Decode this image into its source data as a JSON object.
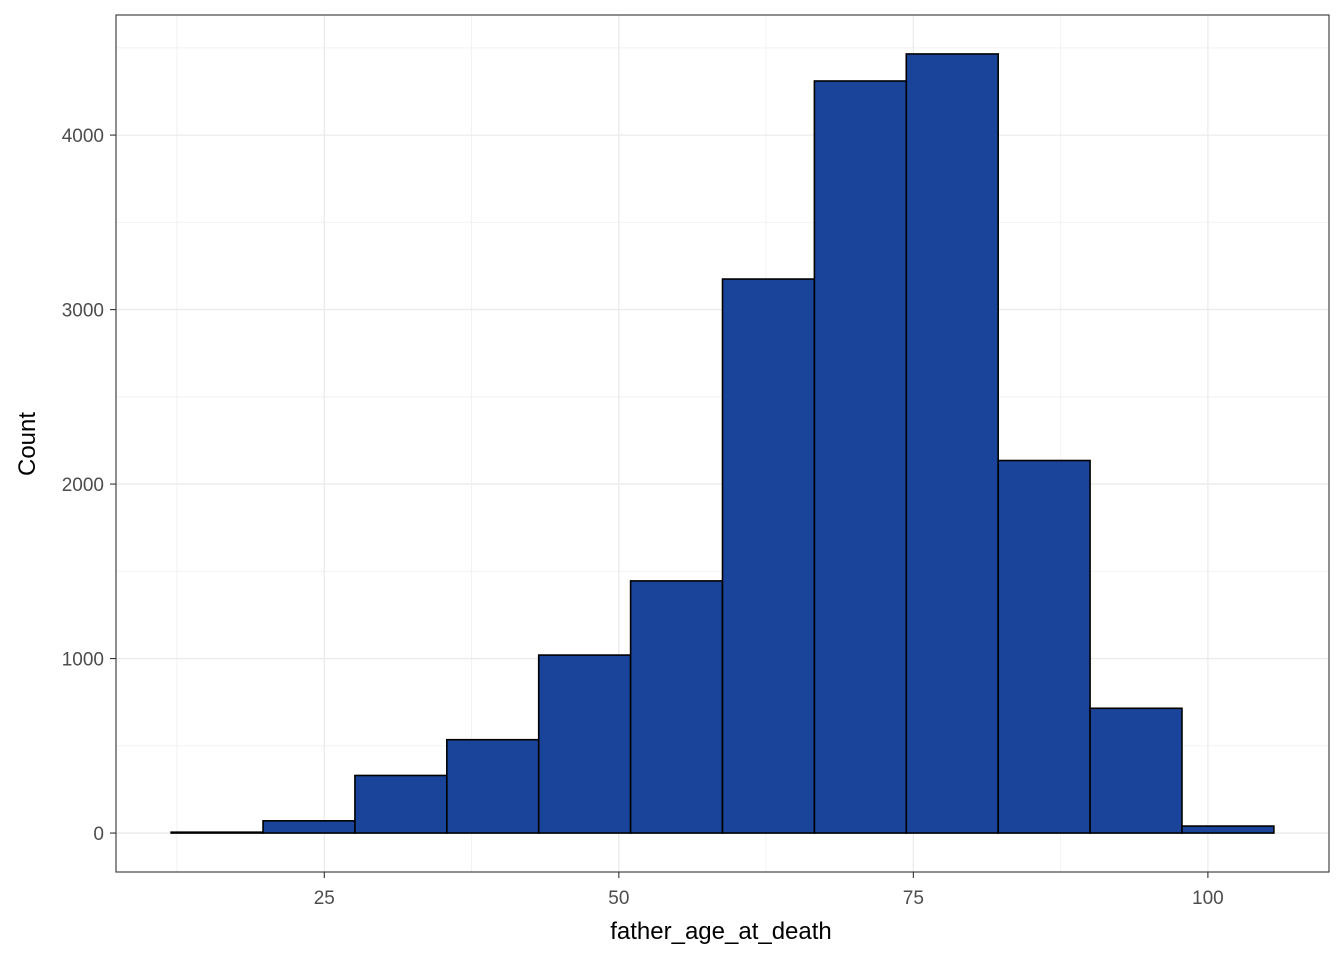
{
  "chart_data": {
    "type": "bar",
    "title": "",
    "xlabel": "father_age_at_death",
    "ylabel": "Count",
    "bin_width": 7.8,
    "bins": [
      {
        "x_start": 12.0,
        "x_end": 19.8,
        "count": 5
      },
      {
        "x_start": 19.8,
        "x_end": 27.6,
        "count": 70
      },
      {
        "x_start": 27.6,
        "x_end": 35.4,
        "count": 330
      },
      {
        "x_start": 35.4,
        "x_end": 43.2,
        "count": 535
      },
      {
        "x_start": 43.2,
        "x_end": 51.0,
        "count": 1020
      },
      {
        "x_start": 51.0,
        "x_end": 58.8,
        "count": 1445
      },
      {
        "x_start": 58.8,
        "x_end": 66.6,
        "count": 3175
      },
      {
        "x_start": 66.6,
        "x_end": 74.4,
        "count": 4310
      },
      {
        "x_start": 74.4,
        "x_end": 82.2,
        "count": 4465
      },
      {
        "x_start": 82.2,
        "x_end": 90.0,
        "count": 2135
      },
      {
        "x_start": 90.0,
        "x_end": 97.8,
        "count": 715
      },
      {
        "x_start": 97.8,
        "x_end": 105.6,
        "count": 40
      }
    ],
    "xlim": [
      7.32,
      110.28
    ],
    "ylim": [
      -223.25,
      4688.25
    ],
    "x_ticks": [
      25,
      50,
      75,
      100
    ],
    "x_tick_labels": [
      "25",
      "50",
      "75",
      "100"
    ],
    "y_ticks": [
      0,
      1000,
      2000,
      3000,
      4000
    ],
    "y_tick_labels": [
      "0",
      "1000",
      "2000",
      "3000",
      "4000"
    ],
    "grid": true,
    "legend": "none",
    "colors": {
      "bar_fill": "#1a4499",
      "bar_outline": "#000000",
      "grid_major": "#ebebeb",
      "grid_minor": "#f2f2f2",
      "panel_border": "#333333"
    }
  }
}
